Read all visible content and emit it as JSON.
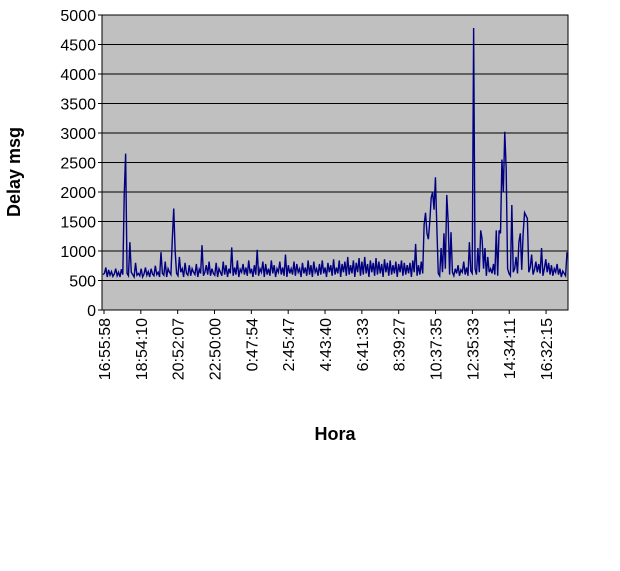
{
  "chart_data": {
    "type": "line",
    "title": "",
    "xlabel": "Hora",
    "ylabel": "Delay msg",
    "ylim": [
      0,
      5000
    ],
    "yticks": [
      0,
      500,
      1000,
      1500,
      2000,
      2500,
      3000,
      3500,
      4000,
      4500,
      5000
    ],
    "xtick_labels": [
      "16:55:58",
      "18:54:10",
      "20:52:07",
      "22:50:00",
      "0:47:54",
      "2:45:47",
      "4:43:40",
      "6:41:33",
      "8:39:27",
      "10:37:35",
      "12:35:33",
      "14:34:11",
      "16:32:15"
    ],
    "grid": true,
    "legend": "none",
    "colors": {
      "line": "#000080",
      "plot_bg": "#c0c0c0",
      "grid": "#000000"
    },
    "series": [
      {
        "values": [
          600,
          620,
          720,
          560,
          680,
          590,
          650,
          570,
          610,
          700,
          580,
          640,
          560,
          690,
          600,
          1950,
          2650,
          620,
          580,
          1150,
          640,
          600,
          560,
          800,
          590,
          620,
          580,
          700,
          560,
          610,
          720,
          590,
          650,
          560,
          700,
          610,
          580,
          750,
          600,
          640,
          560,
          980,
          620,
          590,
          820,
          560,
          700,
          640,
          600,
          1200,
          1720,
          1000,
          620,
          580,
          900,
          640,
          700,
          560,
          800,
          620,
          590,
          760,
          580,
          700,
          640,
          600,
          780,
          560,
          690,
          620,
          1100,
          580,
          640,
          760,
          600,
          820,
          580,
          700,
          620,
          590,
          800,
          560,
          700,
          640,
          580,
          820,
          600,
          760,
          560,
          700,
          620,
          1060,
          580,
          720,
          600,
          840,
          560,
          690,
          640,
          780,
          600,
          720,
          580,
          840,
          620,
          700,
          560,
          760,
          600,
          1020,
          580,
          700,
          640,
          820,
          560,
          780,
          600,
          700,
          580,
          840,
          620,
          760,
          560,
          700,
          640,
          820,
          600,
          720,
          580,
          940,
          560,
          760,
          620,
          700,
          600,
          820,
          580,
          780,
          640,
          700,
          560,
          800,
          620,
          720,
          580,
          840,
          600,
          760,
          560,
          820,
          640,
          700,
          580,
          780,
          600,
          840,
          620,
          720,
          560,
          800,
          640,
          760,
          580,
          860,
          600,
          720,
          620,
          840,
          560,
          780,
          640,
          820,
          580,
          900,
          600,
          760,
          620,
          840,
          560,
          800,
          640,
          880,
          580,
          820,
          600,
          900,
          620,
          780,
          560,
          840,
          640,
          800,
          580,
          880,
          600,
          820,
          620,
          780,
          560,
          860,
          640,
          800,
          580,
          840,
          600,
          760,
          620,
          820,
          560,
          780,
          640,
          840,
          580,
          800,
          600,
          760,
          620,
          800,
          560,
          840,
          640,
          1120,
          580,
          760,
          600,
          820,
          620,
          1450,
          1650,
          1300,
          1200,
          1500,
          1900,
          2000,
          1700,
          2250,
          1400,
          620,
          580,
          1050,
          640,
          1300,
          700,
          1950,
          1500,
          600,
          1320,
          640,
          580,
          700,
          620,
          760,
          580,
          680,
          640,
          820,
          600,
          720,
          580,
          1150,
          660,
          620,
          4780,
          700,
          600,
          1050,
          640,
          1350,
          1200,
          700,
          1050,
          580,
          900,
          640,
          700,
          620,
          780,
          600,
          1350,
          580,
          1350,
          1300,
          2550,
          2000,
          3020,
          2400,
          700,
          620,
          580,
          1780,
          640,
          700,
          900,
          620,
          1150,
          1300,
          680,
          1300,
          1650,
          1600,
          1550,
          640,
          720,
          940,
          600,
          680,
          820,
          640,
          780,
          620,
          1050,
          580,
          700,
          860,
          640,
          800,
          600,
          760,
          580,
          700,
          640,
          780,
          600,
          700,
          560,
          660,
          620,
          580,
          980
        ]
      }
    ]
  }
}
